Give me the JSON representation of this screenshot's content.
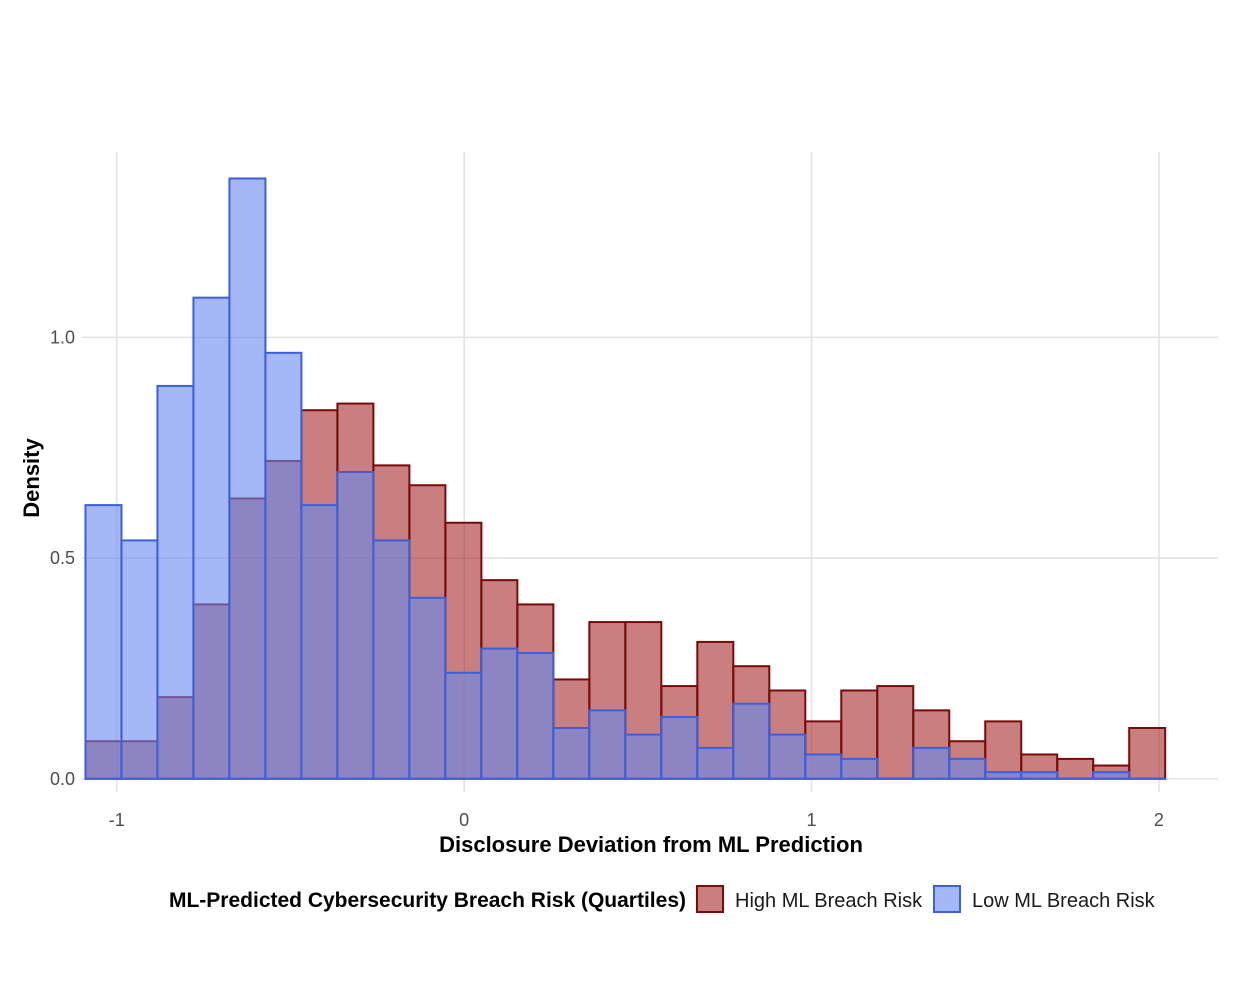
{
  "chart_data": {
    "type": "histogram",
    "title": "",
    "xlabel": "Disclosure Deviation from ML Prediction",
    "ylabel": "Density",
    "xlim": [
      -1.1,
      2.17
    ],
    "ylim": [
      -0.03,
      1.42
    ],
    "x_ticks": [
      {
        "value": -1,
        "label": "-1"
      },
      {
        "value": 0,
        "label": "0"
      },
      {
        "value": 1,
        "label": "1"
      },
      {
        "value": 2,
        "label": "2"
      }
    ],
    "y_ticks": [
      {
        "value": 0,
        "label": "0.0"
      },
      {
        "value": 0.5,
        "label": "0.5"
      },
      {
        "value": 1,
        "label": "1.0"
      }
    ],
    "bin_start": -1.09,
    "bin_width": 0.1036,
    "series": [
      {
        "name": "High ML Breach Risk",
        "fill": "#a52a2a",
        "fill_opacity": 0.6,
        "stroke": "#7a0a0a",
        "values": [
          0.085,
          0.085,
          0.185,
          0.395,
          0.635,
          0.72,
          0.835,
          0.85,
          0.71,
          0.665,
          0.58,
          0.45,
          0.395,
          0.225,
          0.355,
          0.355,
          0.21,
          0.31,
          0.255,
          0.2,
          0.13,
          0.2,
          0.21,
          0.155,
          0.085,
          0.13,
          0.055,
          0.045,
          0.03,
          0.115
        ]
      },
      {
        "name": "Low ML Breach Risk",
        "fill": "#6688ee",
        "fill_opacity": 0.6,
        "stroke": "#3c5fdc",
        "values": [
          0.62,
          0.54,
          0.89,
          1.09,
          1.36,
          0.965,
          0.62,
          0.695,
          0.54,
          0.41,
          0.24,
          0.295,
          0.285,
          0.115,
          0.155,
          0.1,
          0.14,
          0.07,
          0.17,
          0.1,
          0.055,
          0.045,
          0.0,
          0.07,
          0.045,
          0.015,
          0.015,
          0.0,
          0.015,
          0.0
        ]
      }
    ],
    "legend": {
      "title": "ML-Predicted Cybersecurity Breach Risk (Quartiles)",
      "position": "bottom"
    },
    "grid": true
  }
}
